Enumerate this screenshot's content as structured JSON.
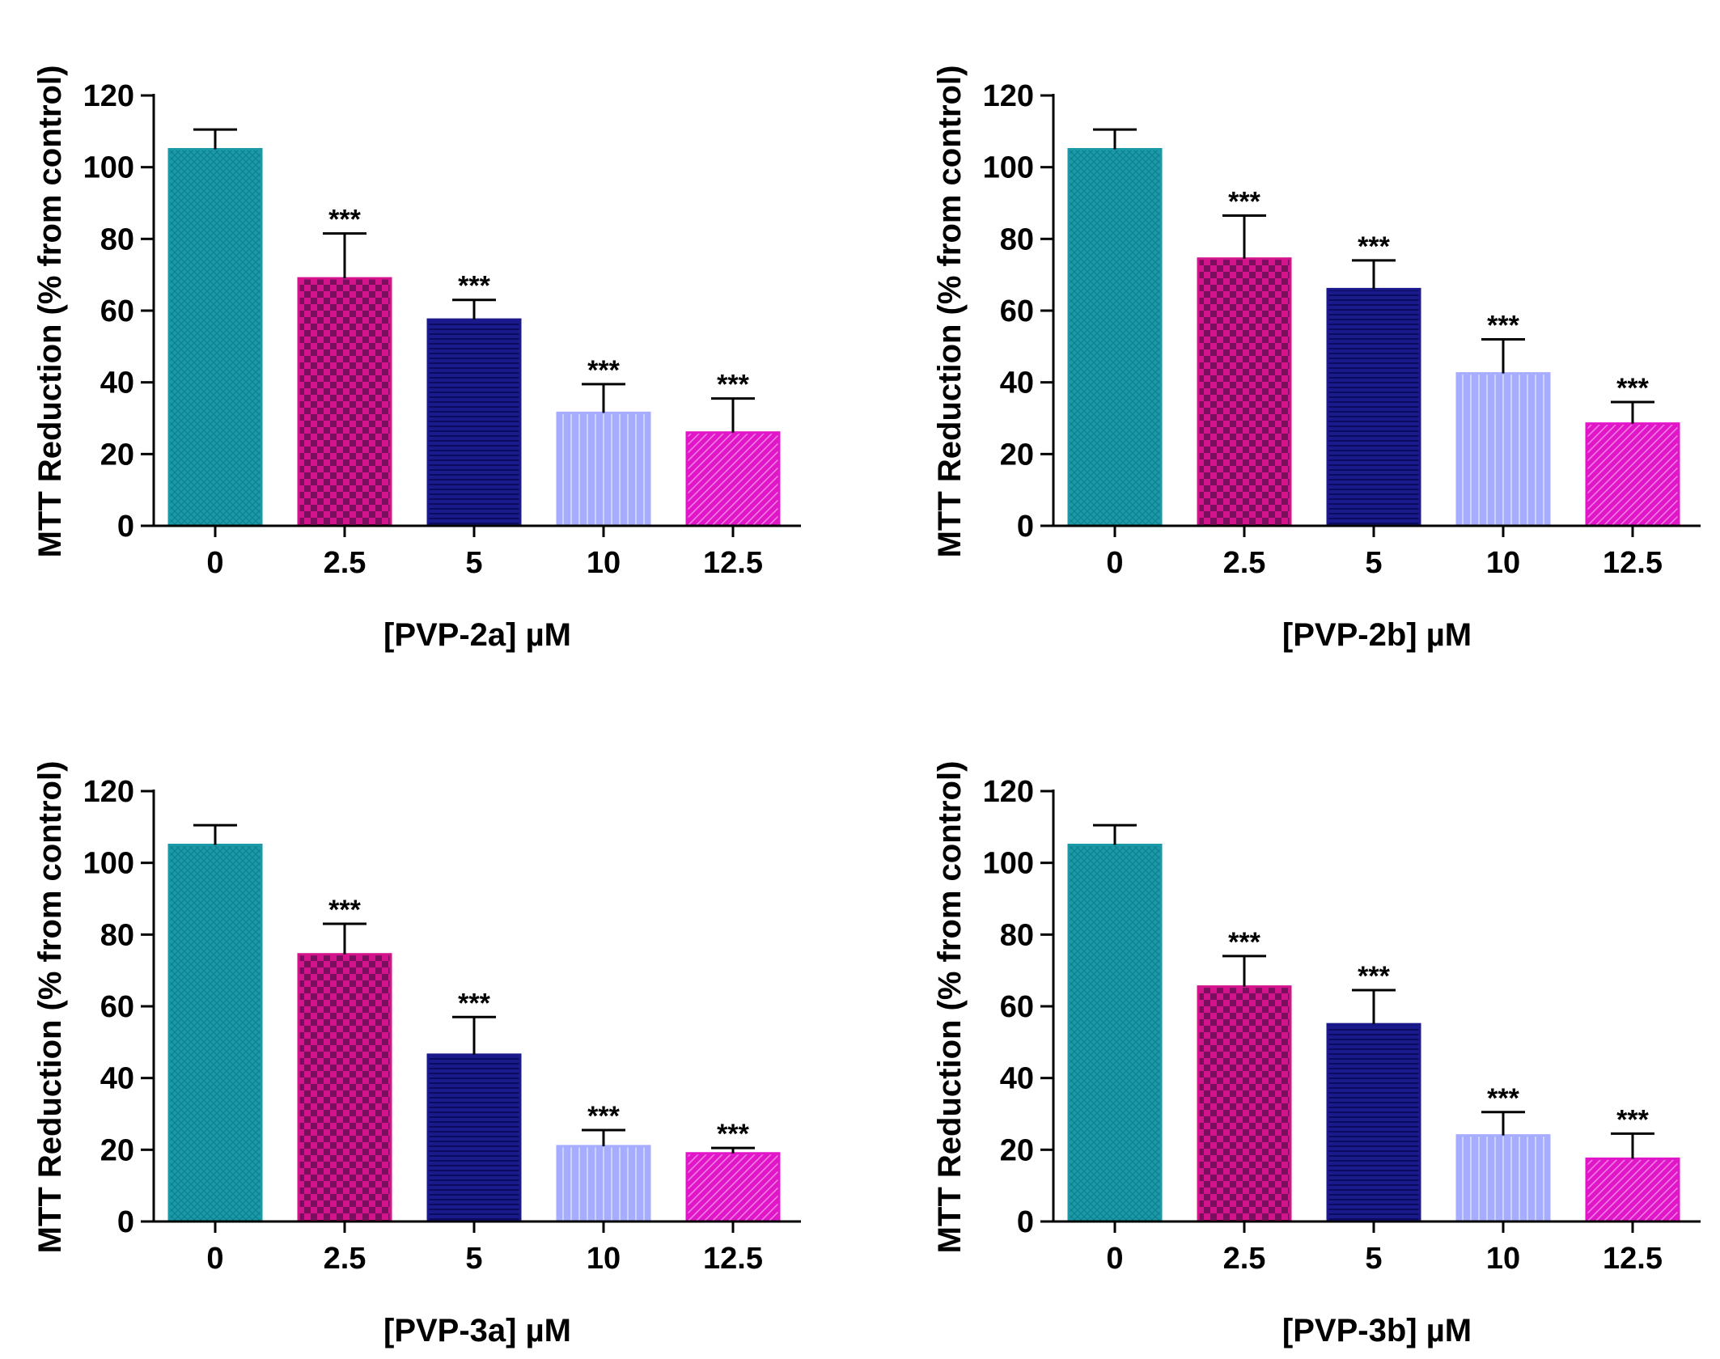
{
  "chart_data": [
    {
      "type": "bar",
      "title": "",
      "xlabel": "[PVP-2a] µM",
      "ylabel": "MTT Reduction (% from control)",
      "ylim": [
        0,
        120
      ],
      "yticks": [
        "0",
        "20",
        "40",
        "60",
        "80",
        "100",
        "120"
      ],
      "categories": [
        "0",
        "2.5",
        "5",
        "10",
        "12.5"
      ],
      "values": [
        105,
        69,
        57.5,
        31.5,
        26
      ],
      "errors": [
        5.5,
        12.5,
        5.5,
        8,
        9.5
      ],
      "significance": [
        "",
        "***",
        "***",
        "***",
        "***"
      ]
    },
    {
      "type": "bar",
      "title": "",
      "xlabel": "[PVP-2b] µM",
      "ylabel": "MTT Reduction (% from control)",
      "ylim": [
        0,
        120
      ],
      "yticks": [
        "0",
        "20",
        "40",
        "60",
        "80",
        "100",
        "120"
      ],
      "categories": [
        "0",
        "2.5",
        "5",
        "10",
        "12.5"
      ],
      "values": [
        105,
        74.5,
        66,
        42.5,
        28.5
      ],
      "errors": [
        5.5,
        12,
        8,
        9.5,
        6
      ],
      "significance": [
        "",
        "***",
        "***",
        "***",
        "***"
      ]
    },
    {
      "type": "bar",
      "title": "",
      "xlabel": "[PVP-3a] µM",
      "ylabel": "MTT Reduction (% from control)",
      "ylim": [
        0,
        120
      ],
      "yticks": [
        "0",
        "20",
        "40",
        "60",
        "80",
        "100",
        "120"
      ],
      "categories": [
        "0",
        "2.5",
        "5",
        "10",
        "12.5"
      ],
      "values": [
        105,
        74.5,
        46.5,
        21,
        19
      ],
      "errors": [
        5.5,
        8.5,
        10.5,
        4.5,
        1.5
      ],
      "significance": [
        "",
        "***",
        "***",
        "***",
        "***"
      ]
    },
    {
      "type": "bar",
      "title": "",
      "xlabel": "[PVP-3b] µM",
      "ylabel": "MTT Reduction (% from control)",
      "ylim": [
        0,
        120
      ],
      "yticks": [
        "0",
        "20",
        "40",
        "60",
        "80",
        "100",
        "120"
      ],
      "categories": [
        "0",
        "2.5",
        "5",
        "10",
        "12.5"
      ],
      "values": [
        105,
        65.5,
        55,
        24,
        17.5
      ],
      "errors": [
        5.5,
        8.5,
        9.5,
        6.5,
        7
      ],
      "significance": [
        "",
        "***",
        "***",
        "***",
        "***"
      ]
    }
  ],
  "bar_styles": [
    {
      "name": "crosshatch-teal",
      "fill": "#1a9aa8",
      "pattern_color": "#0f7f8c"
    },
    {
      "name": "checker-magenta",
      "fill": "#d4148c",
      "pattern_color": "#7a0f5e"
    },
    {
      "name": "stripe-navy",
      "fill": "#1a1a8c",
      "pattern_color": "#0b0b60"
    },
    {
      "name": "vertical-lavender",
      "fill": "#a6acff",
      "pattern_color": "#ced2ff"
    },
    {
      "name": "diagonal-pink",
      "fill": "#e016c8",
      "pattern_color": "#f07ee2"
    }
  ],
  "colors": {
    "axis": "#000000",
    "error_bar": "#000000",
    "background": "#ffffff"
  }
}
